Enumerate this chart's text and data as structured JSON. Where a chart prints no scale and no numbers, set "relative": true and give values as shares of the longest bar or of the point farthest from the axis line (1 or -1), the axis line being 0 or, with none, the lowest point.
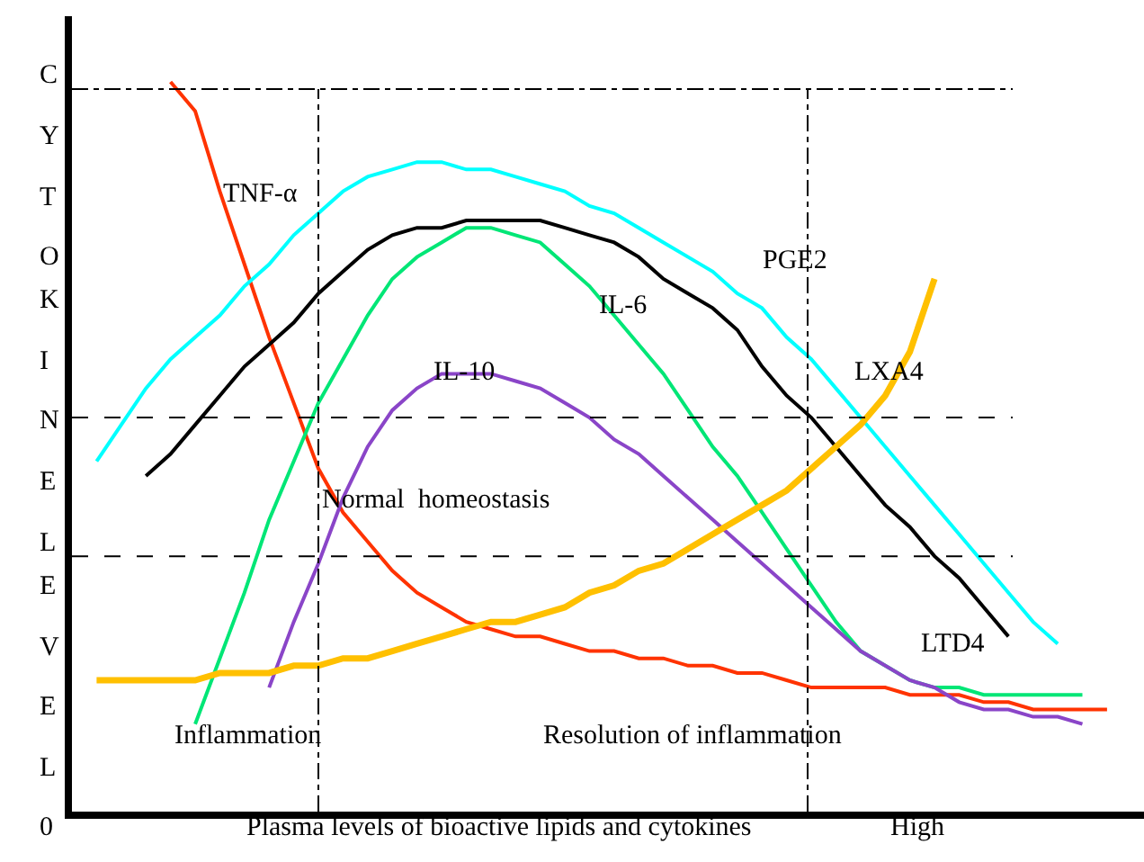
{
  "chart_data": {
    "type": "line",
    "relative": true,
    "xlabel": "Plasma levels of bioactive lipids and cytokines",
    "ylabel": "CYTOKINE LEVEL",
    "legend": false,
    "marker": "none",
    "line_style": "solid",
    "categories": [
      null,
      null,
      null,
      null,
      null,
      null,
      null,
      null,
      null,
      null,
      null,
      null,
      null,
      null,
      null,
      null,
      null,
      null,
      null,
      null,
      null,
      null,
      null,
      null,
      null,
      null,
      null,
      null,
      null,
      null,
      null,
      null,
      null,
      null,
      null,
      null,
      null,
      null,
      null,
      null,
      null,
      null,
      null
    ],
    "series": [
      {
        "name": "TNF-α",
        "color": "#ff3300",
        "values": [
          null,
          null,
          null,
          null,
          1.0,
          0.96,
          0.85,
          0.75,
          0.65,
          0.56,
          0.47,
          0.41,
          0.37,
          0.33,
          0.3,
          0.28,
          0.26,
          0.25,
          0.24,
          0.24,
          0.23,
          0.22,
          0.22,
          0.21,
          0.21,
          0.2,
          0.2,
          0.19,
          0.19,
          0.18,
          0.17,
          0.17,
          0.17,
          0.17,
          0.16,
          0.16,
          0.16,
          0.15,
          0.15,
          0.14,
          0.14,
          0.14,
          0.14
        ]
      },
      {
        "name": "PGE2",
        "color": "#00ffff",
        "values": [
          null,
          0.48,
          0.53,
          0.58,
          0.62,
          0.65,
          0.68,
          0.72,
          0.75,
          0.79,
          0.82,
          0.85,
          0.87,
          0.88,
          0.89,
          0.89,
          0.88,
          0.88,
          0.87,
          0.86,
          0.85,
          0.83,
          0.82,
          0.8,
          0.78,
          0.76,
          0.74,
          0.71,
          0.69,
          0.65,
          0.62,
          0.58,
          0.54,
          0.5,
          0.46,
          0.42,
          0.38,
          0.34,
          0.3,
          0.26,
          0.23,
          null,
          null
        ]
      },
      {
        "name": "LTD4",
        "color": "#000000",
        "values": [
          null,
          null,
          null,
          0.46,
          0.49,
          0.53,
          0.57,
          0.61,
          0.64,
          0.67,
          0.71,
          0.74,
          0.77,
          0.79,
          0.8,
          0.8,
          0.81,
          0.81,
          0.81,
          0.81,
          0.8,
          0.79,
          0.78,
          0.76,
          0.73,
          0.71,
          0.69,
          0.66,
          0.61,
          0.57,
          0.54,
          0.5,
          0.46,
          0.42,
          0.39,
          0.35,
          0.32,
          0.28,
          0.24,
          null,
          null,
          null,
          null
        ]
      },
      {
        "name": "IL-6",
        "color": "#00e676",
        "values": [
          null,
          null,
          null,
          null,
          null,
          0.12,
          0.21,
          0.3,
          0.4,
          0.48,
          0.56,
          0.62,
          0.68,
          0.73,
          0.76,
          0.78,
          0.8,
          0.8,
          0.79,
          0.78,
          0.75,
          0.72,
          0.68,
          0.64,
          0.6,
          0.55,
          0.5,
          0.46,
          0.41,
          0.36,
          0.31,
          0.26,
          0.22,
          0.2,
          0.18,
          0.17,
          0.17,
          0.16,
          0.16,
          0.16,
          0.16,
          0.16,
          null
        ]
      },
      {
        "name": "IL-10",
        "color": "#8a45c8",
        "values": [
          null,
          null,
          null,
          null,
          null,
          null,
          null,
          null,
          0.17,
          0.26,
          0.34,
          0.43,
          0.5,
          0.55,
          0.58,
          0.6,
          0.6,
          0.6,
          0.59,
          0.58,
          0.56,
          0.54,
          0.51,
          0.49,
          0.46,
          0.43,
          0.4,
          0.37,
          0.34,
          0.31,
          0.28,
          0.25,
          0.22,
          0.2,
          0.18,
          0.17,
          0.15,
          0.14,
          0.14,
          0.13,
          0.13,
          0.12,
          null
        ]
      },
      {
        "name": "LXA4",
        "color": "#ffc000",
        "values": [
          null,
          0.18,
          0.18,
          0.18,
          0.18,
          0.18,
          0.19,
          0.19,
          0.19,
          0.2,
          0.2,
          0.21,
          0.21,
          0.22,
          0.23,
          0.24,
          0.25,
          0.26,
          0.26,
          0.27,
          0.28,
          0.3,
          0.31,
          0.33,
          0.34,
          0.36,
          0.38,
          0.4,
          0.42,
          0.44,
          0.47,
          0.5,
          0.53,
          0.57,
          0.63,
          0.73,
          null,
          null,
          null,
          null,
          null,
          null,
          null
        ]
      }
    ],
    "ref_lines": [
      {
        "axis": "y",
        "value": 0.99,
        "line_style": "dashdot"
      },
      {
        "axis": "y",
        "value": 0.54,
        "line_style": "dashed"
      },
      {
        "axis": "y",
        "value": 0.35,
        "line_style": "dashed"
      }
    ],
    "annotations": [
      "Inflammation",
      "Normal  homeostasis",
      "Resolution of inflammation",
      "0",
      "High"
    ]
  }
}
